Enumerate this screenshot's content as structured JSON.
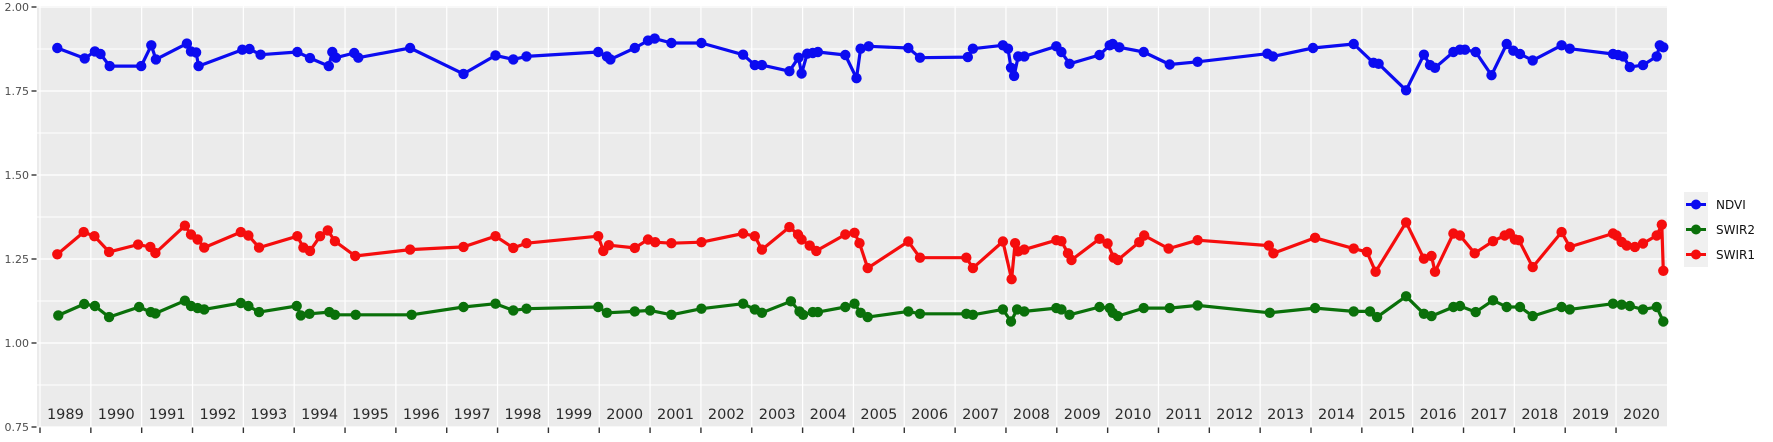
{
  "chart_data": {
    "type": "line",
    "title": "",
    "xlabel": "",
    "ylabel": "",
    "x_axis": {
      "range": [
        1989,
        2021
      ],
      "year_labels": [
        1989,
        1990,
        1991,
        1992,
        1993,
        1994,
        1995,
        1996,
        1997,
        1998,
        1999,
        2000,
        2001,
        2002,
        2003,
        2004,
        2005,
        2006,
        2007,
        2008,
        2009,
        2010,
        2011,
        2012,
        2013,
        2014,
        2015,
        2016,
        2017,
        2018,
        2019,
        2020
      ],
      "gridlines": "yearly"
    },
    "y_axis": {
      "range": [
        0.75,
        2.0
      ],
      "major_values": [
        0.75,
        1.0,
        1.25,
        1.5,
        1.75,
        2.0
      ],
      "tick_labels": [
        "0.75",
        "1.00",
        "1.25",
        "1.50",
        "1.75",
        "2.00"
      ],
      "minor_values": [
        0.875,
        1.125,
        1.375,
        1.625,
        1.875
      ]
    },
    "theme": {
      "panel_background": "#ebebeb",
      "gridline_color": "#ffffff",
      "axis_text_color": "#4d4d4d",
      "year_text_color": "#2b2b2b",
      "tick_mark_color": "#333333",
      "legend_key_background": "#f0f0f0"
    },
    "legend": {
      "position": "right",
      "entries": [
        {
          "label": "NDVI",
          "color": "#0b0bf0"
        },
        {
          "label": "SWIR2",
          "color": "#0a700a"
        },
        {
          "label": "SWIR1",
          "color": "#f50d0d"
        }
      ]
    },
    "series": [
      {
        "name": "NDVI",
        "color": "#0b0bf0",
        "points": [
          [
            1989.34,
            1.878
          ],
          [
            1989.88,
            1.847
          ],
          [
            1990.08,
            1.868
          ],
          [
            1990.19,
            1.86
          ],
          [
            1990.37,
            1.824
          ],
          [
            1990.99,
            1.824
          ],
          [
            1991.19,
            1.886
          ],
          [
            1991.28,
            1.844
          ],
          [
            1991.89,
            1.891
          ],
          [
            1991.97,
            1.868
          ],
          [
            1992.07,
            1.865
          ],
          [
            1992.12,
            1.824
          ],
          [
            1992.98,
            1.873
          ],
          [
            1993.12,
            1.875
          ],
          [
            1993.34,
            1.858
          ],
          [
            1994.06,
            1.866
          ],
          [
            1994.31,
            1.848
          ],
          [
            1994.68,
            1.824
          ],
          [
            1994.75,
            1.866
          ],
          [
            1994.82,
            1.849
          ],
          [
            1995.18,
            1.863
          ],
          [
            1995.26,
            1.849
          ],
          [
            1996.28,
            1.878
          ],
          [
            1997.33,
            1.801
          ],
          [
            1997.96,
            1.856
          ],
          [
            1998.31,
            1.844
          ],
          [
            1998.57,
            1.853
          ],
          [
            1999.98,
            1.866
          ],
          [
            2000.15,
            1.853
          ],
          [
            2000.22,
            1.844
          ],
          [
            2000.7,
            1.878
          ],
          [
            2000.96,
            1.9
          ],
          [
            2001.09,
            1.906
          ],
          [
            2001.42,
            1.893
          ],
          [
            2002.01,
            1.893
          ],
          [
            2002.83,
            1.858
          ],
          [
            2003.06,
            1.827
          ],
          [
            2003.2,
            1.827
          ],
          [
            2003.74,
            1.809
          ],
          [
            2003.92,
            1.849
          ],
          [
            2003.98,
            1.802
          ],
          [
            2004.09,
            1.861
          ],
          [
            2004.2,
            1.863
          ],
          [
            2004.3,
            1.866
          ],
          [
            2004.84,
            1.857
          ],
          [
            2005.06,
            1.788
          ],
          [
            2005.14,
            1.876
          ],
          [
            2005.3,
            1.883
          ],
          [
            2006.08,
            1.878
          ],
          [
            2006.31,
            1.849
          ],
          [
            2007.25,
            1.851
          ],
          [
            2007.35,
            1.876
          ],
          [
            2007.94,
            1.886
          ],
          [
            2008.04,
            1.876
          ],
          [
            2008.1,
            1.819
          ],
          [
            2008.16,
            1.795
          ],
          [
            2008.24,
            1.853
          ],
          [
            2008.36,
            1.853
          ],
          [
            2008.99,
            1.883
          ],
          [
            2009.09,
            1.866
          ],
          [
            2009.25,
            1.831
          ],
          [
            2009.84,
            1.857
          ],
          [
            2010.04,
            1.886
          ],
          [
            2010.1,
            1.89
          ],
          [
            2010.23,
            1.88
          ],
          [
            2010.71,
            1.866
          ],
          [
            2011.22,
            1.829
          ],
          [
            2011.77,
            1.837
          ],
          [
            2013.14,
            1.861
          ],
          [
            2013.25,
            1.853
          ],
          [
            2014.04,
            1.878
          ],
          [
            2014.84,
            1.89
          ],
          [
            2015.23,
            1.834
          ],
          [
            2015.33,
            1.831
          ],
          [
            2015.87,
            1.752
          ],
          [
            2016.22,
            1.858
          ],
          [
            2016.34,
            1.827
          ],
          [
            2016.44,
            1.819
          ],
          [
            2016.8,
            1.866
          ],
          [
            2016.93,
            1.873
          ],
          [
            2017.03,
            1.873
          ],
          [
            2017.24,
            1.866
          ],
          [
            2017.55,
            1.797
          ],
          [
            2017.85,
            1.89
          ],
          [
            2017.98,
            1.87
          ],
          [
            2018.11,
            1.86
          ],
          [
            2018.36,
            1.841
          ],
          [
            2018.93,
            1.886
          ],
          [
            2019.09,
            1.876
          ],
          [
            2019.94,
            1.86
          ],
          [
            2020.04,
            1.857
          ],
          [
            2020.14,
            1.853
          ],
          [
            2020.27,
            1.821
          ],
          [
            2020.53,
            1.827
          ],
          [
            2020.8,
            1.853
          ],
          [
            2020.86,
            1.886
          ],
          [
            2020.93,
            1.88
          ]
        ]
      },
      {
        "name": "SWIR2",
        "color": "#0a700a",
        "points": [
          [
            1989.36,
            1.082
          ],
          [
            1989.87,
            1.116
          ],
          [
            1990.08,
            1.11
          ],
          [
            1990.36,
            1.077
          ],
          [
            1990.95,
            1.107
          ],
          [
            1991.18,
            1.092
          ],
          [
            1991.27,
            1.088
          ],
          [
            1991.85,
            1.126
          ],
          [
            1991.97,
            1.11
          ],
          [
            1992.1,
            1.104
          ],
          [
            1992.23,
            1.1
          ],
          [
            1992.95,
            1.119
          ],
          [
            1993.1,
            1.11
          ],
          [
            1993.31,
            1.092
          ],
          [
            1994.05,
            1.11
          ],
          [
            1994.13,
            1.082
          ],
          [
            1994.3,
            1.087
          ],
          [
            1994.69,
            1.092
          ],
          [
            1994.8,
            1.084
          ],
          [
            1995.21,
            1.084
          ],
          [
            1996.31,
            1.084
          ],
          [
            1997.33,
            1.107
          ],
          [
            1997.96,
            1.117
          ],
          [
            1998.31,
            1.097
          ],
          [
            1998.57,
            1.102
          ],
          [
            1999.98,
            1.107
          ],
          [
            2000.15,
            1.09
          ],
          [
            2000.7,
            1.094
          ],
          [
            2001.0,
            1.097
          ],
          [
            2001.42,
            1.084
          ],
          [
            2002.01,
            1.102
          ],
          [
            2002.83,
            1.117
          ],
          [
            2003.06,
            1.1
          ],
          [
            2003.2,
            1.09
          ],
          [
            2003.77,
            1.124
          ],
          [
            2003.94,
            1.094
          ],
          [
            2004.01,
            1.084
          ],
          [
            2004.2,
            1.092
          ],
          [
            2004.3,
            1.092
          ],
          [
            2004.84,
            1.107
          ],
          [
            2005.02,
            1.117
          ],
          [
            2005.14,
            1.09
          ],
          [
            2005.28,
            1.077
          ],
          [
            2006.08,
            1.094
          ],
          [
            2006.31,
            1.087
          ],
          [
            2007.22,
            1.087
          ],
          [
            2007.35,
            1.084
          ],
          [
            2007.94,
            1.1
          ],
          [
            2008.1,
            1.064
          ],
          [
            2008.22,
            1.1
          ],
          [
            2008.36,
            1.094
          ],
          [
            2008.99,
            1.104
          ],
          [
            2009.09,
            1.1
          ],
          [
            2009.25,
            1.084
          ],
          [
            2009.84,
            1.107
          ],
          [
            2010.04,
            1.104
          ],
          [
            2010.1,
            1.09
          ],
          [
            2010.2,
            1.08
          ],
          [
            2010.71,
            1.104
          ],
          [
            2011.22,
            1.104
          ],
          [
            2011.77,
            1.112
          ],
          [
            2013.19,
            1.09
          ],
          [
            2014.08,
            1.104
          ],
          [
            2014.84,
            1.094
          ],
          [
            2015.16,
            1.094
          ],
          [
            2015.3,
            1.077
          ],
          [
            2015.87,
            1.139
          ],
          [
            2016.22,
            1.087
          ],
          [
            2016.37,
            1.08
          ],
          [
            2016.8,
            1.107
          ],
          [
            2016.93,
            1.11
          ],
          [
            2017.24,
            1.092
          ],
          [
            2017.58,
            1.127
          ],
          [
            2017.85,
            1.107
          ],
          [
            2018.11,
            1.107
          ],
          [
            2018.36,
            1.08
          ],
          [
            2018.93,
            1.107
          ],
          [
            2019.09,
            1.1
          ],
          [
            2019.94,
            1.117
          ],
          [
            2020.11,
            1.114
          ],
          [
            2020.27,
            1.11
          ],
          [
            2020.53,
            1.1
          ],
          [
            2020.8,
            1.107
          ],
          [
            2020.93,
            1.064
          ]
        ]
      },
      {
        "name": "SWIR1",
        "color": "#f50d0d",
        "points": [
          [
            1989.34,
            1.264
          ],
          [
            1989.86,
            1.33
          ],
          [
            1990.07,
            1.318
          ],
          [
            1990.36,
            1.271
          ],
          [
            1990.93,
            1.293
          ],
          [
            1991.17,
            1.286
          ],
          [
            1991.27,
            1.268
          ],
          [
            1991.85,
            1.349
          ],
          [
            1991.97,
            1.323
          ],
          [
            1992.1,
            1.308
          ],
          [
            1992.23,
            1.284
          ],
          [
            1992.95,
            1.33
          ],
          [
            1993.1,
            1.32
          ],
          [
            1993.31,
            1.284
          ],
          [
            1994.06,
            1.318
          ],
          [
            1994.18,
            1.284
          ],
          [
            1994.31,
            1.274
          ],
          [
            1994.51,
            1.318
          ],
          [
            1994.66,
            1.335
          ],
          [
            1994.8,
            1.303
          ],
          [
            1995.2,
            1.259
          ],
          [
            1996.28,
            1.278
          ],
          [
            1997.33,
            1.286
          ],
          [
            1997.96,
            1.318
          ],
          [
            1998.31,
            1.283
          ],
          [
            1998.57,
            1.297
          ],
          [
            1999.98,
            1.318
          ],
          [
            2000.08,
            1.274
          ],
          [
            2000.19,
            1.291
          ],
          [
            2000.7,
            1.283
          ],
          [
            2000.96,
            1.308
          ],
          [
            2001.1,
            1.3
          ],
          [
            2001.42,
            1.297
          ],
          [
            2002.01,
            1.3
          ],
          [
            2002.83,
            1.326
          ],
          [
            2003.06,
            1.318
          ],
          [
            2003.2,
            1.278
          ],
          [
            2003.74,
            1.345
          ],
          [
            2003.91,
            1.323
          ],
          [
            2003.98,
            1.308
          ],
          [
            2004.14,
            1.29
          ],
          [
            2004.27,
            1.274
          ],
          [
            2004.84,
            1.323
          ],
          [
            2005.02,
            1.328
          ],
          [
            2005.12,
            1.297
          ],
          [
            2005.28,
            1.223
          ],
          [
            2006.08,
            1.302
          ],
          [
            2006.31,
            1.254
          ],
          [
            2007.22,
            1.254
          ],
          [
            2007.35,
            1.223
          ],
          [
            2007.94,
            1.302
          ],
          [
            2008.11,
            1.19
          ],
          [
            2008.18,
            1.297
          ],
          [
            2008.24,
            1.273
          ],
          [
            2008.36,
            1.278
          ],
          [
            2008.99,
            1.306
          ],
          [
            2009.09,
            1.303
          ],
          [
            2009.22,
            1.267
          ],
          [
            2009.29,
            1.247
          ],
          [
            2009.84,
            1.31
          ],
          [
            2010.0,
            1.296
          ],
          [
            2010.12,
            1.254
          ],
          [
            2010.2,
            1.247
          ],
          [
            2010.62,
            1.3
          ],
          [
            2010.72,
            1.32
          ],
          [
            2011.2,
            1.281
          ],
          [
            2011.77,
            1.306
          ],
          [
            2013.17,
            1.29
          ],
          [
            2013.26,
            1.267
          ],
          [
            2014.08,
            1.313
          ],
          [
            2014.84,
            1.281
          ],
          [
            2015.1,
            1.271
          ],
          [
            2015.27,
            1.212
          ],
          [
            2015.87,
            1.359
          ],
          [
            2016.22,
            1.251
          ],
          [
            2016.37,
            1.259
          ],
          [
            2016.44,
            1.212
          ],
          [
            2016.8,
            1.326
          ],
          [
            2016.93,
            1.32
          ],
          [
            2017.22,
            1.267
          ],
          [
            2017.58,
            1.303
          ],
          [
            2017.81,
            1.32
          ],
          [
            2017.91,
            1.326
          ],
          [
            2018.01,
            1.308
          ],
          [
            2018.09,
            1.306
          ],
          [
            2018.36,
            1.226
          ],
          [
            2018.93,
            1.33
          ],
          [
            2019.09,
            1.286
          ],
          [
            2019.94,
            1.326
          ],
          [
            2020.01,
            1.32
          ],
          [
            2020.11,
            1.301
          ],
          [
            2020.21,
            1.29
          ],
          [
            2020.37,
            1.286
          ],
          [
            2020.53,
            1.296
          ],
          [
            2020.8,
            1.32
          ],
          [
            2020.9,
            1.352
          ],
          [
            2020.93,
            1.215
          ]
        ]
      }
    ]
  }
}
